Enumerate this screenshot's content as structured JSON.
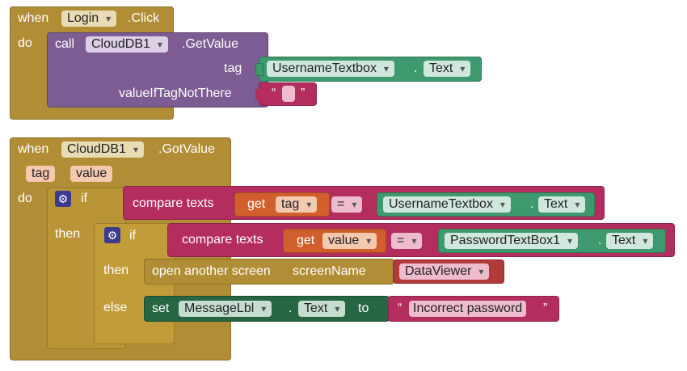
{
  "block1": {
    "when": "when",
    "component": "Login",
    "event": ".Click",
    "do": "do",
    "call": "call",
    "db": "CloudDB1",
    "method": ".GetValue",
    "tag_label": "tag",
    "vitnt_label": "valueIfTagNotThere",
    "tag_component": "UsernameTextbox",
    "dot": ".",
    "tag_property": "Text",
    "empty_open": "“",
    "empty_close": "”"
  },
  "block2": {
    "when": "when",
    "component": "CloudDB1",
    "event": ".GotValue",
    "param_tag": "tag",
    "param_value": "value",
    "do": "do",
    "if1": "if",
    "then1": "then",
    "compare1": "compare texts",
    "get1": "get",
    "get1_var": "tag",
    "op1": "=",
    "cmp1_component": "UsernameTextbox",
    "dot": ".",
    "cmp1_property": "Text",
    "if2": "if",
    "compare2": "compare texts",
    "get2": "get",
    "get2_var": "value",
    "op2": "=",
    "cmp2_component": "PasswordTextBox1",
    "cmp2_property": "Text",
    "then2": "then",
    "open_screen": "open another screen",
    "screen_name_label": "screenName",
    "screen_name": "DataViewer",
    "else": "else",
    "set": "set",
    "set_component": "MessageLbl",
    "set_property": "Text",
    "to": "to",
    "msg_open": "“",
    "msg": "Incorrect password",
    "msg_close": "”"
  },
  "icons": {
    "mutator": "gear-icon",
    "dropdown": "chevron-down-icon"
  },
  "colors": {
    "event": "#b18e35",
    "procedure": "#7c5c93",
    "text": "#b32d5e",
    "component": "#3f996e",
    "setter": "#266643",
    "variable": "#d05f2d",
    "mutator": "#3c3a8f"
  }
}
